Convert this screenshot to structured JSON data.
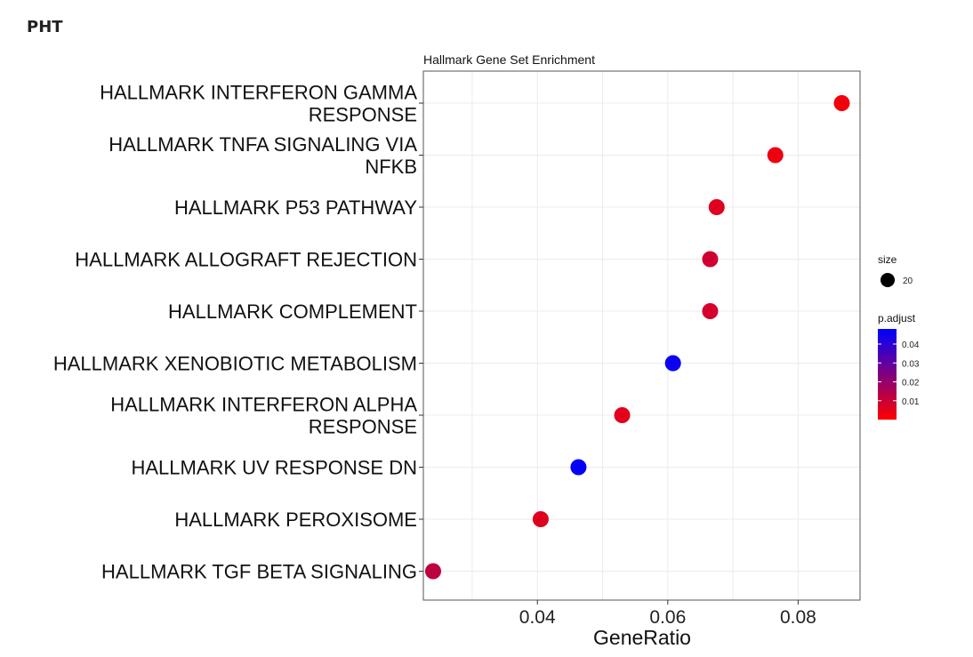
{
  "page_label": "PHT",
  "chart_data": {
    "type": "scatter",
    "title": "Hallmark Gene Set Enrichment",
    "xlabel": "GeneRatio",
    "ylabel": "",
    "xlim": [
      0.0225,
      0.0895
    ],
    "x_ticks": [
      0.04,
      0.06,
      0.08
    ],
    "x_tick_labels": [
      "0.04",
      "0.06",
      "0.08"
    ],
    "grid": true,
    "legend_position": "right",
    "categories": [
      [
        "HALLMARK INTERFERON GAMMA",
        "RESPONSE"
      ],
      [
        "HALLMARK TNFA SIGNALING VIA",
        "NFKB"
      ],
      [
        "HALLMARK P53 PATHWAY"
      ],
      [
        "HALLMARK ALLOGRAFT REJECTION"
      ],
      [
        "HALLMARK COMPLEMENT"
      ],
      [
        "HALLMARK XENOBIOTIC METABOLISM"
      ],
      [
        "HALLMARK INTERFERON ALPHA",
        "RESPONSE"
      ],
      [
        "HALLMARK UV RESPONSE DN"
      ],
      [
        "HALLMARK PEROXISOME"
      ],
      [
        "HALLMARK TGF BETA SIGNALING"
      ]
    ],
    "points": [
      {
        "x": 0.0867,
        "p_adjust": 0.002,
        "size": 20
      },
      {
        "x": 0.0765,
        "p_adjust": 0.003,
        "size": 20
      },
      {
        "x": 0.0675,
        "p_adjust": 0.006,
        "size": 20
      },
      {
        "x": 0.0665,
        "p_adjust": 0.009,
        "size": 20
      },
      {
        "x": 0.0665,
        "p_adjust": 0.008,
        "size": 20
      },
      {
        "x": 0.0608,
        "p_adjust": 0.046,
        "size": 20
      },
      {
        "x": 0.053,
        "p_adjust": 0.005,
        "size": 20
      },
      {
        "x": 0.0463,
        "p_adjust": 0.047,
        "size": 20
      },
      {
        "x": 0.0405,
        "p_adjust": 0.006,
        "size": 20
      },
      {
        "x": 0.024,
        "p_adjust": 0.012,
        "size": 20
      }
    ],
    "legend_size": {
      "title": "size",
      "label": "20"
    },
    "legend_color": {
      "title": "p.adjust",
      "range": [
        0.0,
        0.048
      ],
      "ticks": [
        0.04,
        0.03,
        0.02,
        0.01
      ],
      "tick_labels": [
        "0.04",
        "0.03",
        "0.02",
        "0.01"
      ],
      "low_color": "#ff0000",
      "high_color": "#0000ff"
    }
  }
}
